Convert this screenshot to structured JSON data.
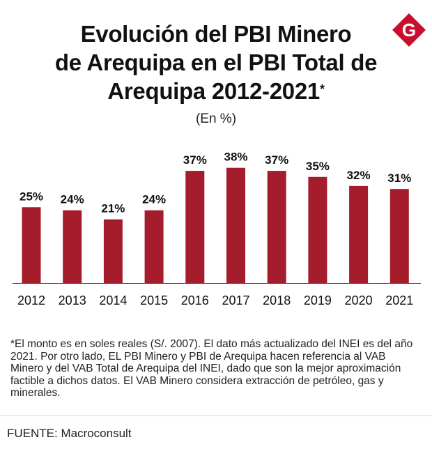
{
  "header": {
    "title_lines": [
      "Evolución del PBI Minero",
      "de Arequipa en el PBI Total de",
      "Arequipa 2012-2021"
    ],
    "title_mark": "*",
    "subtitle": "(En %)",
    "logo": {
      "icon": "g-diamond-logo",
      "letter": "G",
      "color": "#c8102e"
    }
  },
  "chart_data": {
    "type": "bar",
    "categories": [
      "2012",
      "2013",
      "2014",
      "2015",
      "2016",
      "2017",
      "2018",
      "2019",
      "2020",
      "2021"
    ],
    "values": [
      25,
      24,
      21,
      24,
      37,
      38,
      37,
      35,
      32,
      31
    ],
    "value_labels": [
      "25%",
      "24%",
      "21%",
      "24%",
      "37%",
      "38%",
      "37%",
      "35%",
      "32%",
      "31%"
    ],
    "title": "Evolución del PBI Minero de Arequipa en el PBI Total de Arequipa 2012-2021*",
    "subtitle": "(En %)",
    "ylim": [
      0,
      40
    ],
    "bar_color": "#a51d2d",
    "grid": false,
    "legend": "none"
  },
  "footnote": "*El monto es en soles reales (S/. 2007). El dato más actualizado del INEI es del año 2021. Por otro lado, EL PBI Minero y PBI de Arequipa hacen referencia al VAB Minero y del VAB Total de Arequipa del INEI, dado que son la mejor aproximación factible a dichos datos. El VAB Minero considera extracción de petróleo, gas y minerales.",
  "source": "FUENTE: Macroconsult"
}
